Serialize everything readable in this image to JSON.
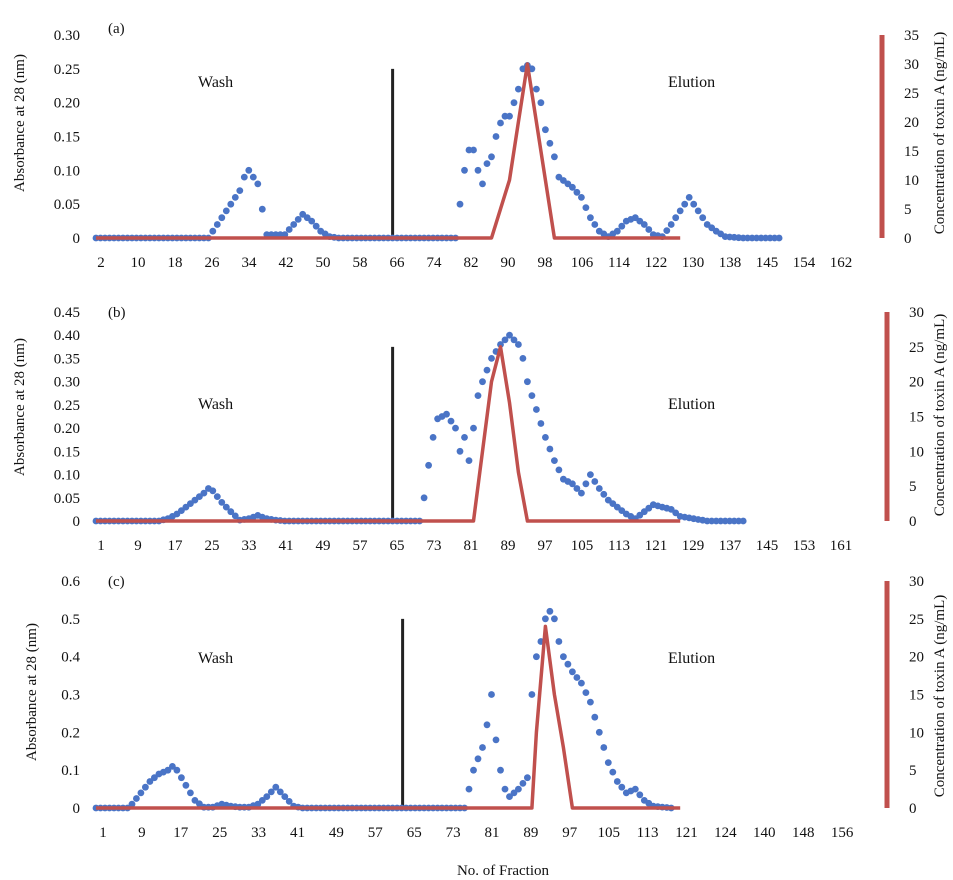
{
  "figure": {
    "xlabel": "No. of Fraction"
  },
  "colors": {
    "absorbance": "#4a74c6",
    "toxin": "#c0504d",
    "divider": "#222222",
    "axis": "#444444"
  },
  "chart_data": [
    {
      "type": "line",
      "panel_label": "(a)",
      "ylabel": "Absorbance at 28 (nm)",
      "y2label": "Concentration of toxin A (ng/mL)",
      "ylim": [
        0,
        0.3
      ],
      "yticks": [
        "0",
        "0.05",
        "0.10",
        "0.15",
        "0.20",
        "0.25",
        "0.30"
      ],
      "y2lim": [
        0,
        35
      ],
      "y2ticks": [
        "0",
        "5",
        "10",
        "15",
        "20",
        "25",
        "30",
        "35"
      ],
      "xlim": [
        0,
        170
      ],
      "xticks": [
        "2",
        "10",
        "18",
        "26",
        "34",
        "42",
        "50",
        "58",
        "66",
        "74",
        "82",
        "90",
        "98",
        "106",
        "114",
        "122",
        "130",
        "138",
        "145",
        "154",
        "162"
      ],
      "annotations": [
        "Wash",
        "Elution"
      ],
      "divider": {
        "x": 66,
        "y": 0.25
      },
      "series": [
        {
          "axis": "left",
          "style": "dots",
          "x": [
            0,
            25,
            26,
            28,
            30,
            32,
            33,
            34,
            35,
            36,
            38,
            42,
            44,
            46,
            48,
            50,
            52,
            54,
            80,
            81,
            82,
            83,
            84,
            85,
            86,
            87,
            88,
            89,
            90,
            91,
            92,
            93,
            94,
            95,
            96,
            97,
            98,
            99,
            100,
            101,
            102,
            103,
            104,
            106,
            108,
            110,
            112,
            114,
            116,
            118,
            120,
            122,
            124,
            126,
            128,
            130,
            132,
            134,
            136,
            138,
            140,
            144,
            146,
            150,
            152
          ],
          "y": [
            0,
            0,
            0.01,
            0.03,
            0.05,
            0.07,
            0.09,
            0.1,
            0.09,
            0.08,
            0.005,
            0.005,
            0.02,
            0.035,
            0.025,
            0.01,
            0.002,
            0,
            0,
            0.05,
            0.1,
            0.13,
            0.13,
            0.1,
            0.08,
            0.11,
            0.12,
            0.15,
            0.17,
            0.18,
            0.18,
            0.2,
            0.22,
            0.25,
            0.255,
            0.25,
            0.22,
            0.2,
            0.16,
            0.14,
            0.12,
            0.09,
            0.085,
            0.075,
            0.06,
            0.03,
            0.01,
            0.002,
            0.01,
            0.025,
            0.03,
            0.02,
            0.005,
            0.002,
            0.02,
            0.04,
            0.06,
            0.04,
            0.02,
            0.01,
            0.002,
            0,
            0,
            0,
            0
          ]
        },
        {
          "axis": "right",
          "style": "line",
          "x": [
            0,
            88,
            90,
            92,
            94,
            96,
            98,
            100,
            102,
            130
          ],
          "y": [
            0,
            0,
            5,
            10,
            20,
            30,
            20,
            10,
            0,
            0
          ]
        }
      ]
    },
    {
      "type": "line",
      "panel_label": "(b)",
      "ylabel": "Absorbance at 28 (nm)",
      "y2label": "Concentration of toxin A (ng/mL)",
      "ylim": [
        0,
        0.45
      ],
      "yticks": [
        "0",
        "0.05",
        "0.10",
        "0.15",
        "0.20",
        "0.25",
        "0.30",
        "0.35",
        "0.40",
        "0.45"
      ],
      "y2lim": [
        0,
        30
      ],
      "y2ticks": [
        "0",
        "5",
        "10",
        "15",
        "20",
        "25",
        "30"
      ],
      "xlim": [
        0,
        170
      ],
      "xticks": [
        "1",
        "9",
        "17",
        "25",
        "33",
        "41",
        "49",
        "57",
        "65",
        "73",
        "81",
        "89",
        "97",
        "105",
        "113",
        "121",
        "129",
        "137",
        "145",
        "153",
        "161"
      ],
      "annotations": [
        "Wash",
        "Elution"
      ],
      "divider": {
        "x": 66,
        "y": 0.375
      },
      "series": [
        {
          "axis": "left",
          "style": "dots",
          "x": [
            0,
            14,
            16,
            18,
            20,
            22,
            24,
            25,
            26,
            28,
            30,
            32,
            34,
            36,
            38,
            40,
            42,
            72,
            73,
            74,
            75,
            76,
            78,
            80,
            81,
            82,
            83,
            84,
            85,
            86,
            88,
            90,
            92,
            94,
            95,
            96,
            98,
            100,
            102,
            104,
            106,
            108,
            110,
            112,
            114,
            116,
            118,
            120,
            122,
            124,
            126,
            128,
            130,
            136,
            144
          ],
          "y": [
            0,
            0,
            0.005,
            0.015,
            0.03,
            0.045,
            0.06,
            0.07,
            0.065,
            0.04,
            0.02,
            0.002,
            0.005,
            0.012,
            0.005,
            0.002,
            0,
            0,
            0.05,
            0.12,
            0.18,
            0.22,
            0.23,
            0.2,
            0.15,
            0.18,
            0.13,
            0.2,
            0.27,
            0.3,
            0.35,
            0.38,
            0.4,
            0.38,
            0.35,
            0.3,
            0.24,
            0.18,
            0.13,
            0.09,
            0.08,
            0.06,
            0.1,
            0.07,
            0.045,
            0.03,
            0.015,
            0.005,
            0.02,
            0.035,
            0.03,
            0.025,
            0.01,
            0,
            0
          ]
        },
        {
          "axis": "right",
          "style": "line",
          "x": [
            0,
            84,
            86,
            88,
            90,
            92,
            94,
            96,
            130
          ],
          "y": [
            0,
            0,
            10,
            20,
            25,
            17,
            7,
            0,
            0
          ]
        }
      ]
    },
    {
      "type": "line",
      "panel_label": "(c)",
      "ylabel": "Absorbance at 28 (nm)",
      "y2label": "Concentration of toxin A (ng/mL)",
      "ylim": [
        0,
        0.6
      ],
      "yticks": [
        "0",
        "0.1",
        "0.2",
        "0.3",
        "0.4",
        "0.5",
        "0.6"
      ],
      "y2lim": [
        0,
        30
      ],
      "y2ticks": [
        "0",
        "5",
        "10",
        "15",
        "20",
        "25",
        "30"
      ],
      "xlim": [
        0,
        170
      ],
      "xticks": [
        "1",
        "9",
        "17",
        "25",
        "33",
        "41",
        "49",
        "57",
        "65",
        "73",
        "81",
        "89",
        "97",
        "105",
        "113",
        "121",
        "124",
        "140",
        "148",
        "156"
      ],
      "annotations": [
        "Wash",
        "Elution"
      ],
      "divider": {
        "x": 66,
        "y": 0.5
      },
      "series": [
        {
          "axis": "left",
          "style": "dots",
          "x": [
            0,
            7,
            8,
            10,
            12,
            14,
            16,
            17,
            18,
            20,
            22,
            24,
            26,
            28,
            30,
            32,
            34,
            36,
            38,
            40,
            42,
            44,
            46,
            82,
            84,
            86,
            87,
            88,
            89,
            90,
            91,
            92,
            94,
            96,
            97,
            98,
            99,
            100,
            101,
            102,
            103,
            104,
            106,
            108,
            110,
            112,
            114,
            116,
            118,
            120,
            122,
            124,
            128
          ],
          "y": [
            0,
            0,
            0.01,
            0.04,
            0.07,
            0.09,
            0.1,
            0.11,
            0.1,
            0.06,
            0.02,
            0.002,
            0.002,
            0.01,
            0.005,
            0.002,
            0.002,
            0.01,
            0.03,
            0.055,
            0.03,
            0.005,
            0,
            0,
            0.1,
            0.16,
            0.22,
            0.3,
            0.18,
            0.1,
            0.05,
            0.03,
            0.05,
            0.08,
            0.3,
            0.4,
            0.44,
            0.5,
            0.52,
            0.5,
            0.44,
            0.4,
            0.36,
            0.33,
            0.28,
            0.2,
            0.12,
            0.07,
            0.04,
            0.05,
            0.02,
            0.005,
            0
          ]
        },
        {
          "axis": "right",
          "style": "line",
          "x": [
            0,
            97,
            98,
            100,
            102,
            104,
            106,
            130
          ],
          "y": [
            0,
            0,
            10,
            24,
            15,
            8,
            0,
            0
          ]
        }
      ]
    }
  ]
}
